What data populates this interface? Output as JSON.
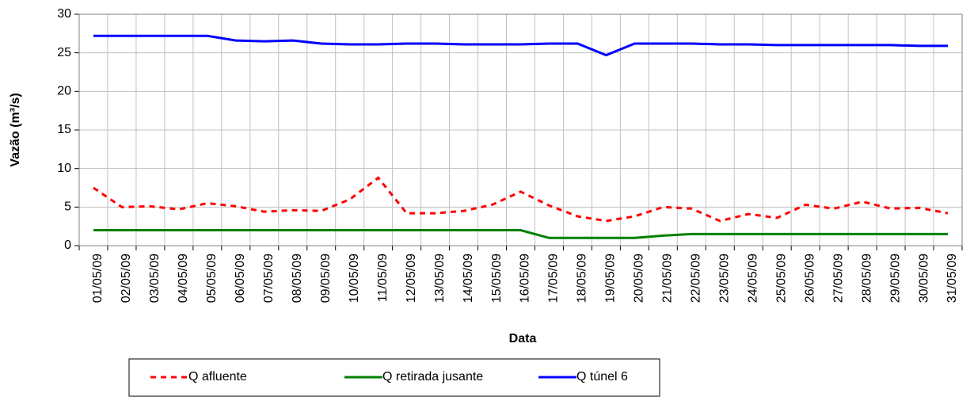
{
  "chart_data": {
    "type": "line",
    "x_label": "Data",
    "y_label": "Vazão (m³/s)",
    "categories": [
      "01/05/09",
      "02/05/09",
      "03/05/09",
      "04/05/09",
      "05/05/09",
      "06/05/09",
      "07/05/09",
      "08/05/09",
      "09/05/09",
      "10/05/09",
      "11/05/09",
      "12/05/09",
      "13/05/09",
      "14/05/09",
      "15/05/09",
      "16/05/09",
      "17/05/09",
      "18/05/09",
      "19/05/09",
      "20/05/09",
      "21/05/09",
      "22/05/09",
      "23/05/09",
      "24/05/09",
      "25/05/09",
      "26/05/09",
      "27/05/09",
      "28/05/09",
      "29/05/09",
      "30/05/09",
      "31/05/09"
    ],
    "series": [
      {
        "name": "Q afluente",
        "color": "#ff0000",
        "dashed": true,
        "values": [
          7.5,
          5.0,
          5.1,
          4.7,
          5.5,
          5.1,
          4.4,
          4.6,
          4.5,
          6.0,
          8.8,
          4.2,
          4.2,
          4.5,
          5.3,
          7.0,
          5.2,
          3.8,
          3.2,
          3.8,
          5.0,
          4.8,
          3.2,
          4.1,
          3.6,
          5.3,
          4.8,
          5.7,
          4.8,
          4.9,
          4.2
        ]
      },
      {
        "name": "Q retirada jusante",
        "color": "#008000",
        "dashed": false,
        "values": [
          2,
          2,
          2,
          2,
          2,
          2,
          2,
          2,
          2,
          2,
          2,
          2,
          2,
          2,
          2,
          2,
          1,
          1,
          1,
          1,
          1.3,
          1.5,
          1.5,
          1.5,
          1.5,
          1.5,
          1.5,
          1.5,
          1.5,
          1.5,
          1.5
        ]
      },
      {
        "name": "Q túnel 6",
        "color": "#0000ff",
        "dashed": false,
        "values": [
          27.2,
          27.2,
          27.2,
          27.2,
          27.2,
          26.6,
          26.5,
          26.6,
          26.2,
          26.1,
          26.1,
          26.2,
          26.2,
          26.1,
          26.1,
          26.1,
          26.2,
          26.2,
          24.7,
          26.2,
          26.2,
          26.2,
          26.1,
          26.1,
          26.0,
          26.0,
          26.0,
          26.0,
          26.0,
          25.9,
          25.9
        ]
      }
    ],
    "ylim": [
      0,
      30
    ],
    "yticks": [
      0,
      5,
      10,
      15,
      20,
      25,
      30
    ],
    "grid": true
  }
}
